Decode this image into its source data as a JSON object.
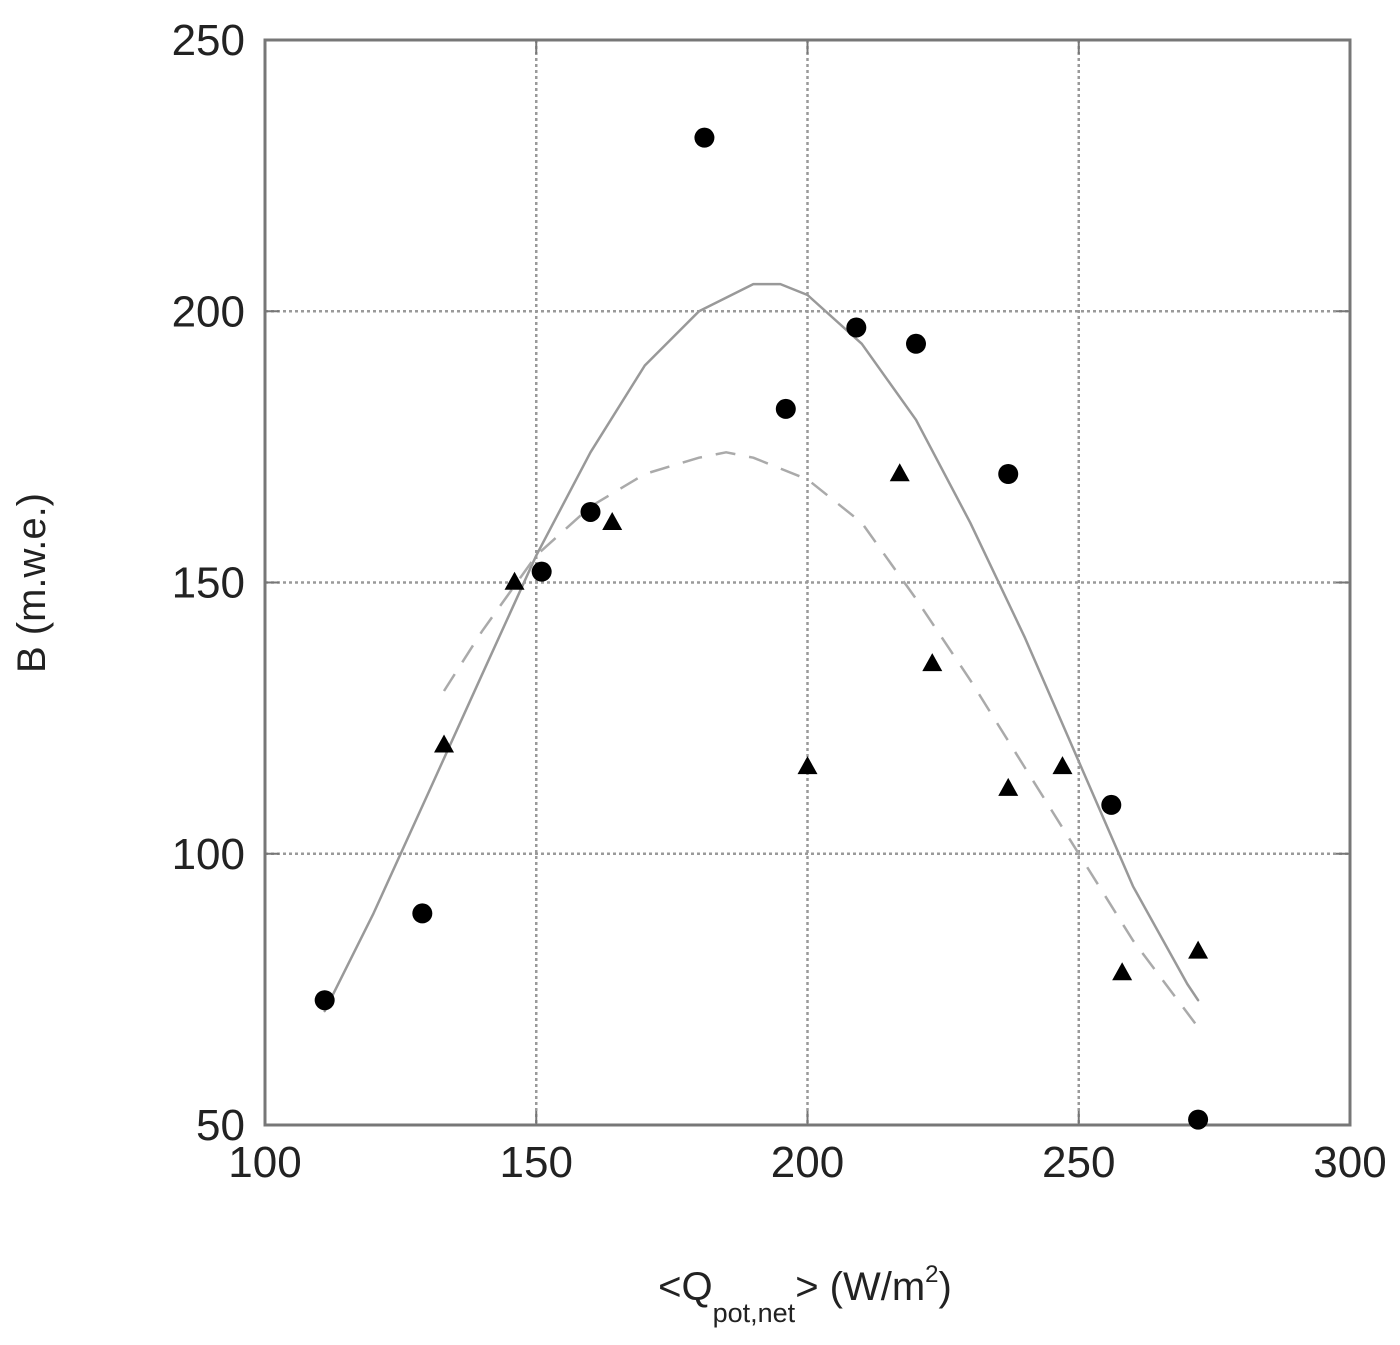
{
  "chart_data": {
    "type": "scatter",
    "title": "",
    "xlabel": {
      "prefix": "<Q",
      "subscript": "pot,net",
      "middle": "> (W/m",
      "superscript": "2",
      "suffix": ")"
    },
    "ylabel": "B (m.w.e.)",
    "xlim": [
      100,
      300
    ],
    "ylim": [
      50,
      250
    ],
    "xticks": [
      100,
      150,
      200,
      250,
      300
    ],
    "yticks": [
      50,
      100,
      150,
      200,
      250
    ],
    "grid": true,
    "legend": "none",
    "series": [
      {
        "marker": "circle",
        "color": "#000000",
        "points": [
          [
            111,
            73
          ],
          [
            129,
            89
          ],
          [
            151,
            152
          ],
          [
            160,
            163
          ],
          [
            181,
            232
          ],
          [
            196,
            182
          ],
          [
            209,
            197
          ],
          [
            220,
            194
          ],
          [
            237,
            170
          ],
          [
            256,
            109
          ],
          [
            272,
            51
          ]
        ]
      },
      {
        "marker": "triangle",
        "color": "#000000",
        "points": [
          [
            133,
            120
          ],
          [
            146,
            150
          ],
          [
            164,
            161
          ],
          [
            200,
            116
          ],
          [
            217,
            170
          ],
          [
            223,
            135
          ],
          [
            237,
            112
          ],
          [
            247,
            116
          ],
          [
            258,
            78
          ],
          [
            272,
            82
          ]
        ]
      }
    ],
    "fits": [
      {
        "style": "solid",
        "color": "#999999",
        "points": [
          [
            111,
            71
          ],
          [
            120,
            89
          ],
          [
            130,
            111
          ],
          [
            140,
            133
          ],
          [
            150,
            155
          ],
          [
            160,
            174
          ],
          [
            170,
            190
          ],
          [
            180,
            200
          ],
          [
            190,
            205
          ],
          [
            195,
            205
          ],
          [
            200,
            203
          ],
          [
            210,
            194
          ],
          [
            220,
            180
          ],
          [
            230,
            161
          ],
          [
            240,
            140
          ],
          [
            250,
            117
          ],
          [
            260,
            94
          ],
          [
            270,
            76
          ],
          [
            272,
            73
          ]
        ]
      },
      {
        "style": "dashed",
        "color": "#aaaaaa",
        "points": [
          [
            133,
            130
          ],
          [
            140,
            141
          ],
          [
            150,
            155
          ],
          [
            160,
            164
          ],
          [
            170,
            170
          ],
          [
            180,
            173
          ],
          [
            185,
            174
          ],
          [
            190,
            173
          ],
          [
            200,
            169
          ],
          [
            210,
            161
          ],
          [
            220,
            147
          ],
          [
            230,
            132
          ],
          [
            240,
            116
          ],
          [
            250,
            100
          ],
          [
            260,
            84
          ],
          [
            272,
            68
          ]
        ]
      }
    ]
  }
}
